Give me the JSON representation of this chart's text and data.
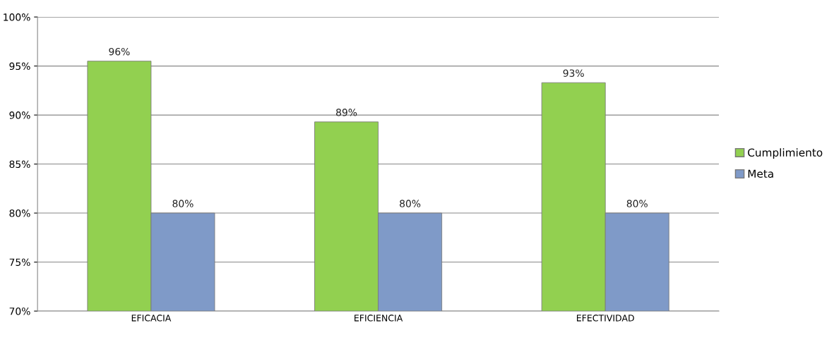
{
  "chart_data": {
    "type": "bar",
    "categories": [
      "EFICACIA",
      "EFICIENCIA",
      "EFECTIVIDAD"
    ],
    "series": [
      {
        "name": "Cumplimiento",
        "color": "#92d050",
        "values": [
          95.5,
          89.3,
          93.3
        ],
        "value_labels": [
          "96%",
          "89%",
          "93%"
        ]
      },
      {
        "name": "Meta",
        "color": "#7f9ac8",
        "values": [
          80,
          80,
          80
        ],
        "value_labels": [
          "80%",
          "80%",
          "80%"
        ]
      }
    ],
    "ylim": [
      70,
      100
    ],
    "yticks": [
      {
        "value": 70,
        "label": "70%"
      },
      {
        "value": 75,
        "label": "75%"
      },
      {
        "value": 80,
        "label": "80%"
      },
      {
        "value": 85,
        "label": "85%"
      },
      {
        "value": 90,
        "label": "90%"
      },
      {
        "value": 95,
        "label": "95%"
      },
      {
        "value": 100,
        "label": "100%"
      }
    ],
    "grid": "y",
    "legend": "right"
  }
}
